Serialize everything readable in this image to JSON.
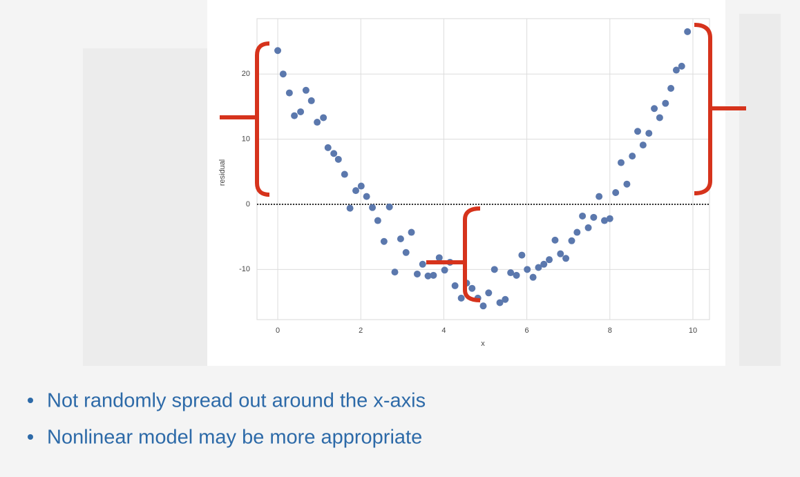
{
  "chart_data": {
    "type": "scatter",
    "xlabel": "x",
    "ylabel": "residual",
    "x": [
      0.0,
      0.13,
      0.28,
      0.4,
      0.55,
      0.68,
      0.81,
      0.95,
      1.1,
      1.21,
      1.35,
      1.46,
      1.61,
      1.74,
      1.88,
      2.01,
      2.14,
      2.28,
      2.41,
      2.56,
      2.69,
      2.82,
      2.96,
      3.09,
      3.22,
      3.36,
      3.49,
      3.62,
      3.75,
      3.89,
      4.02,
      4.15,
      4.27,
      4.42,
      4.55,
      4.68,
      4.82,
      4.95,
      5.08,
      5.22,
      5.35,
      5.48,
      5.61,
      5.75,
      5.88,
      6.01,
      6.15,
      6.28,
      6.41,
      6.54,
      6.68,
      6.81,
      6.94,
      7.08,
      7.21,
      7.34,
      7.48,
      7.61,
      7.74,
      7.87,
      8.0,
      8.14,
      8.27,
      8.41,
      8.54,
      8.67,
      8.8,
      8.94,
      9.07,
      9.2,
      9.34,
      9.47,
      9.6,
      9.73,
      9.87
    ],
    "values": [
      23.6,
      20.0,
      17.1,
      13.6,
      14.2,
      17.5,
      15.9,
      12.6,
      13.3,
      8.7,
      7.8,
      6.9,
      4.6,
      -0.6,
      2.1,
      2.8,
      1.2,
      -0.5,
      -2.5,
      -5.7,
      -0.4,
      -10.4,
      -5.3,
      -7.4,
      -4.3,
      -10.7,
      -9.2,
      -11.0,
      -10.9,
      -8.2,
      -10.1,
      -8.9,
      -12.5,
      -14.4,
      -12.1,
      -12.9,
      -14.4,
      -15.6,
      -13.6,
      -10.0,
      -15.1,
      -14.6,
      -10.5,
      -10.9,
      -7.8,
      -10.0,
      -11.2,
      -9.7,
      -9.2,
      -8.5,
      -5.5,
      -7.6,
      -8.3,
      -5.6,
      -4.3,
      -1.8,
      -3.6,
      -2.0,
      1.2,
      -2.5,
      -2.2,
      1.8,
      6.4,
      3.1,
      7.4,
      11.2,
      9.1,
      10.9,
      14.7,
      13.3,
      15.5,
      17.8,
      20.6,
      21.2,
      26.5
    ],
    "color": "#5b78ad",
    "xlim": [
      -0.5,
      10.4
    ],
    "ylim": [
      -17.7,
      28.5
    ],
    "xticks": [
      0,
      2,
      4,
      6,
      8,
      10
    ],
    "yticks": [
      -10,
      0,
      10,
      20
    ],
    "hline": 0,
    "grid": true
  },
  "bullets": [
    "Not randomly spread out around the x-axis",
    "Nonlinear model may be more appropriate"
  ]
}
